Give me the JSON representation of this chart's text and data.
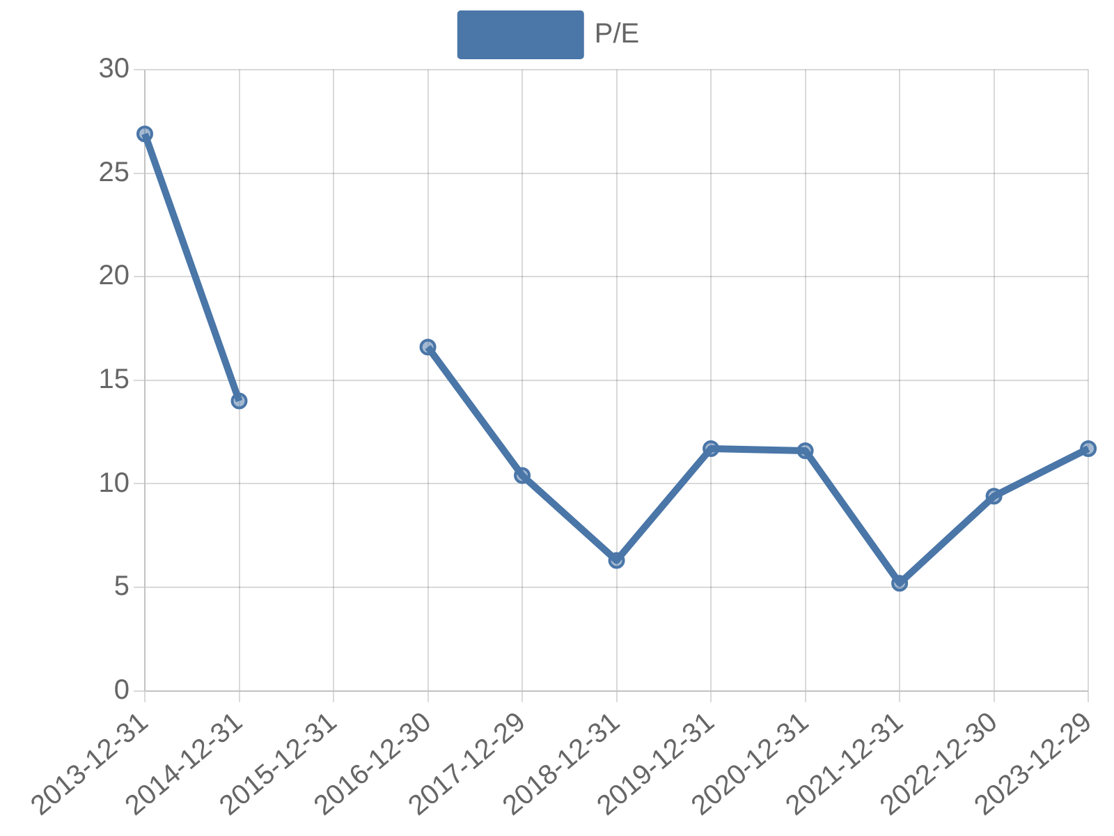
{
  "chart_data": {
    "type": "line",
    "categories": [
      "2013-12-31",
      "2014-12-31",
      "2015-12-31",
      "2016-12-30",
      "2017-12-29",
      "2018-12-31",
      "2019-12-31",
      "2020-12-31",
      "2021-12-31",
      "2022-12-30",
      "2023-12-29"
    ],
    "series": [
      {
        "name": "P/E",
        "color": "#4a76a8",
        "values": [
          26.9,
          14.0,
          null,
          16.6,
          10.4,
          6.3,
          11.7,
          11.6,
          5.2,
          9.4,
          11.7
        ]
      }
    ],
    "ylim": [
      0,
      30
    ],
    "yticks": [
      0,
      5,
      10,
      15,
      20,
      25,
      30
    ],
    "grid": true,
    "legend": "top",
    "marker": "circle",
    "line_style": "solid"
  }
}
